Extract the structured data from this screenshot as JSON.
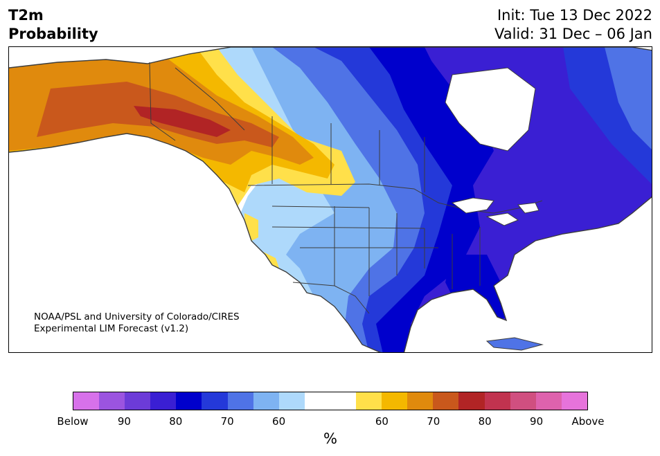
{
  "header": {
    "variable": "T2m",
    "product": "Probability",
    "init": "Init: Tue 13 Dec 2022",
    "valid": "Valid: 31 Dec – 06 Jan"
  },
  "credit": {
    "line1": "NOAA/PSL and University of Colorado/CIRES",
    "line2": "Experimental LIM Forecast (v1.2)"
  },
  "colorbar": {
    "unit": "%",
    "colors": [
      "#d771ea",
      "#9b54e0",
      "#6c3bd8",
      "#3a1fd3",
      "#0000cc",
      "#2439d9",
      "#4f73e6",
      "#7eb3f2",
      "#aed9fb",
      "#ffffff",
      "#ffffff",
      "#ffe04a",
      "#f4b800",
      "#e08a0d",
      "#c9581c",
      "#b12425",
      "#c1334f",
      "#d04f80",
      "#de62ad",
      "#e673db"
    ],
    "ticks": [
      "Below",
      "90",
      "80",
      "70",
      "60",
      "60",
      "70",
      "80",
      "90",
      "Above"
    ]
  },
  "map": {
    "region": "North America",
    "colors": {
      "land_outline": "#3c3c3c",
      "ocean": "#ffffff"
    }
  }
}
